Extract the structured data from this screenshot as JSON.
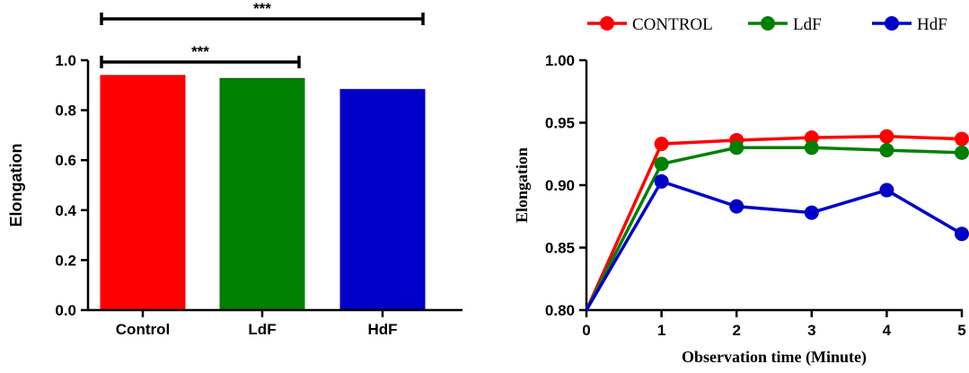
{
  "chart_data": [
    {
      "type": "bar",
      "ylabel": "Elongation",
      "xlabel": "",
      "ylim": [
        0,
        1.0
      ],
      "yticks": [
        "0.0",
        "0.2",
        "0.4",
        "0.6",
        "0.8",
        "1.0"
      ],
      "categories": [
        "Control",
        "LdF",
        "HdF"
      ],
      "values": [
        0.94,
        0.928,
        0.884
      ],
      "colors": [
        "#ff0000",
        "#008000",
        "#0000c8"
      ],
      "significance": [
        {
          "from": "Control",
          "to": "LdF",
          "label": "***"
        },
        {
          "from": "Control",
          "to": "HdF",
          "label": "***"
        }
      ],
      "grid": false
    },
    {
      "type": "line",
      "xlabel": "Observation time (Minute)",
      "ylabel": "Elongation",
      "xlim": [
        0,
        5
      ],
      "ylim": [
        0.8,
        1.0
      ],
      "xticks": [
        "0",
        "1",
        "2",
        "3",
        "4",
        "5"
      ],
      "yticks": [
        "0.80",
        "0.85",
        "0.90",
        "0.95",
        "1.00"
      ],
      "legend_position": "top",
      "x": [
        0,
        1,
        2,
        3,
        4,
        5
      ],
      "series": [
        {
          "name": "CONTROL",
          "color": "#ff0000",
          "values": [
            0.8,
            0.933,
            0.936,
            0.938,
            0.939,
            0.937
          ]
        },
        {
          "name": "LdF",
          "color": "#008000",
          "values": [
            0.8,
            0.917,
            0.93,
            0.93,
            0.928,
            0.926
          ]
        },
        {
          "name": "HdF",
          "color": "#0000c8",
          "values": [
            0.8,
            0.903,
            0.883,
            0.878,
            0.896,
            0.861
          ]
        }
      ],
      "grid": false
    }
  ]
}
